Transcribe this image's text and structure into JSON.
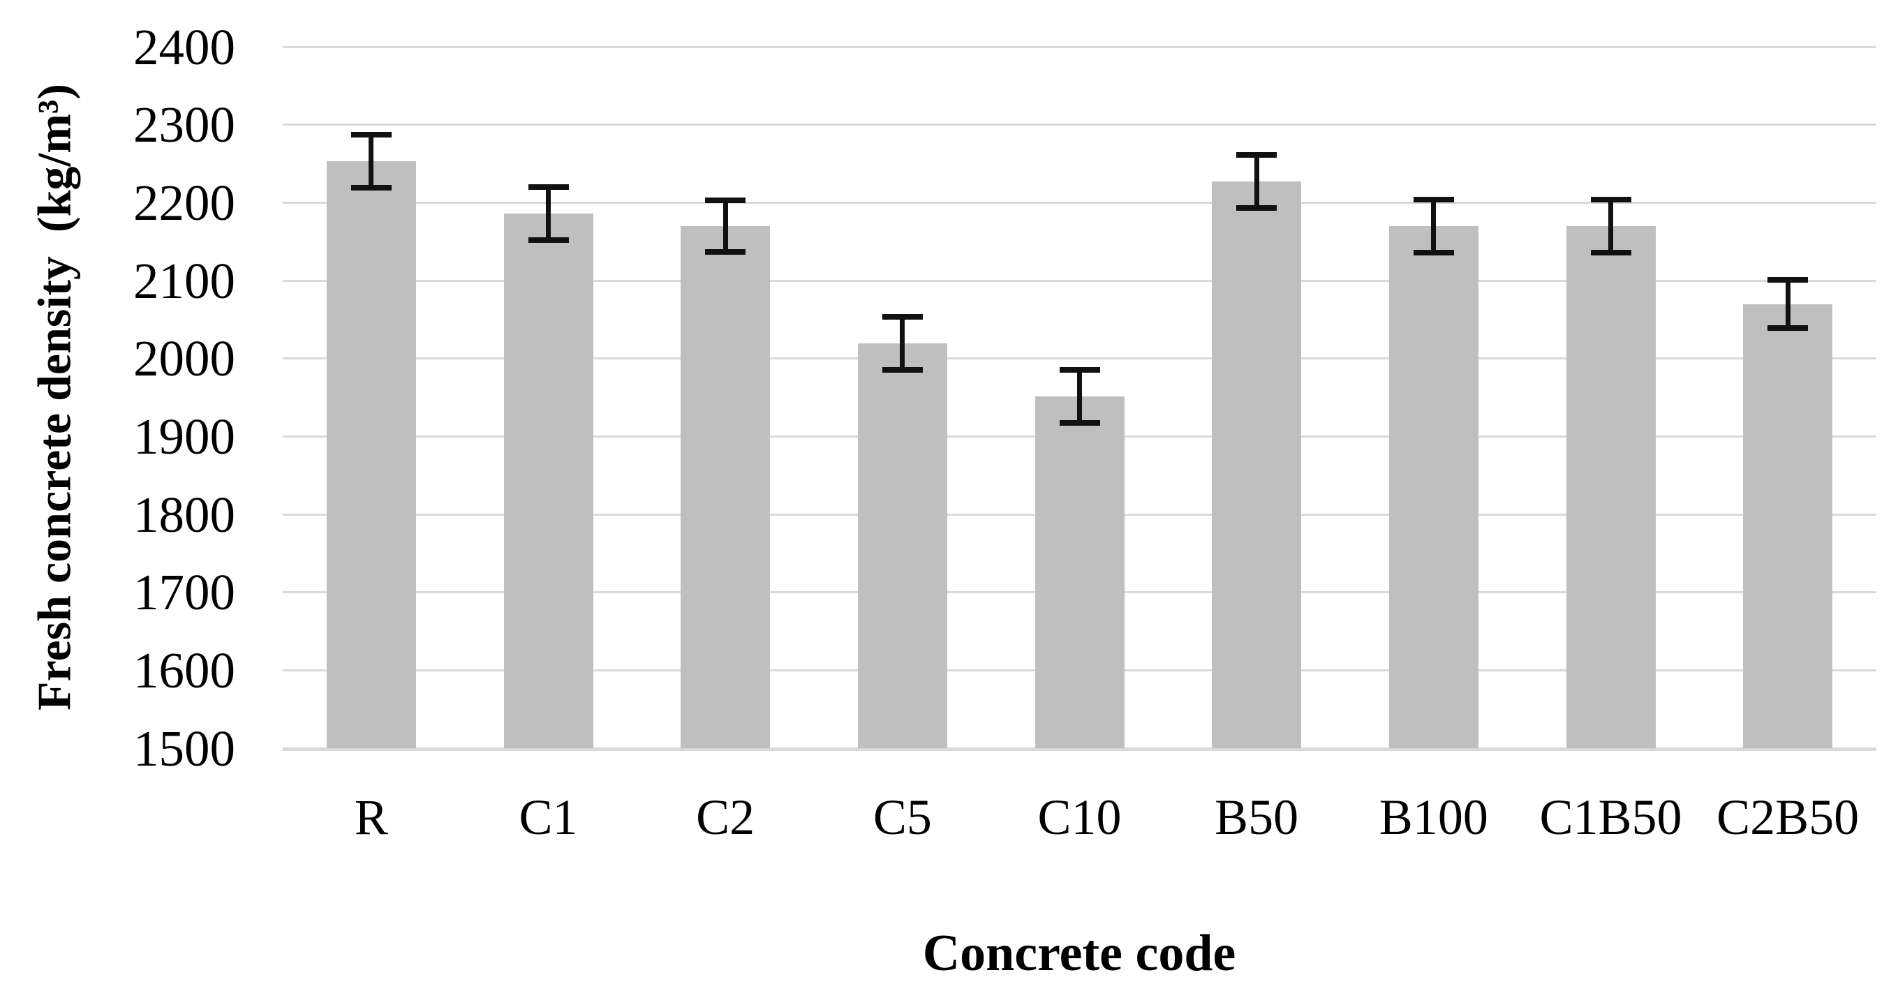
{
  "chart_data": {
    "type": "bar",
    "title": "",
    "xlabel": "Concrete code",
    "ylabel": "Fresh concrete density  (kg/m³)",
    "categories": [
      "R",
      "C1",
      "C2",
      "C5",
      "C10",
      "B50",
      "B100",
      "C1B50",
      "C2B50"
    ],
    "values": [
      2253,
      2186,
      2170,
      2019,
      1951,
      2227,
      2170,
      2170,
      2070
    ],
    "errors": [
      34,
      34,
      33,
      34,
      34,
      34,
      34,
      34,
      31
    ],
    "ylim": [
      1500,
      2400
    ],
    "ytick_step": 100,
    "yticks": [
      2400,
      2300,
      2200,
      2100,
      2000,
      1900,
      1800,
      1700,
      1600,
      1500
    ],
    "grid": true,
    "legend": false,
    "bar_color": "#bfbfbf",
    "grid_color": "#d9d9d9",
    "error_bar_color": "#111111",
    "text_color": "#000000",
    "background_color": "#ffffff"
  }
}
